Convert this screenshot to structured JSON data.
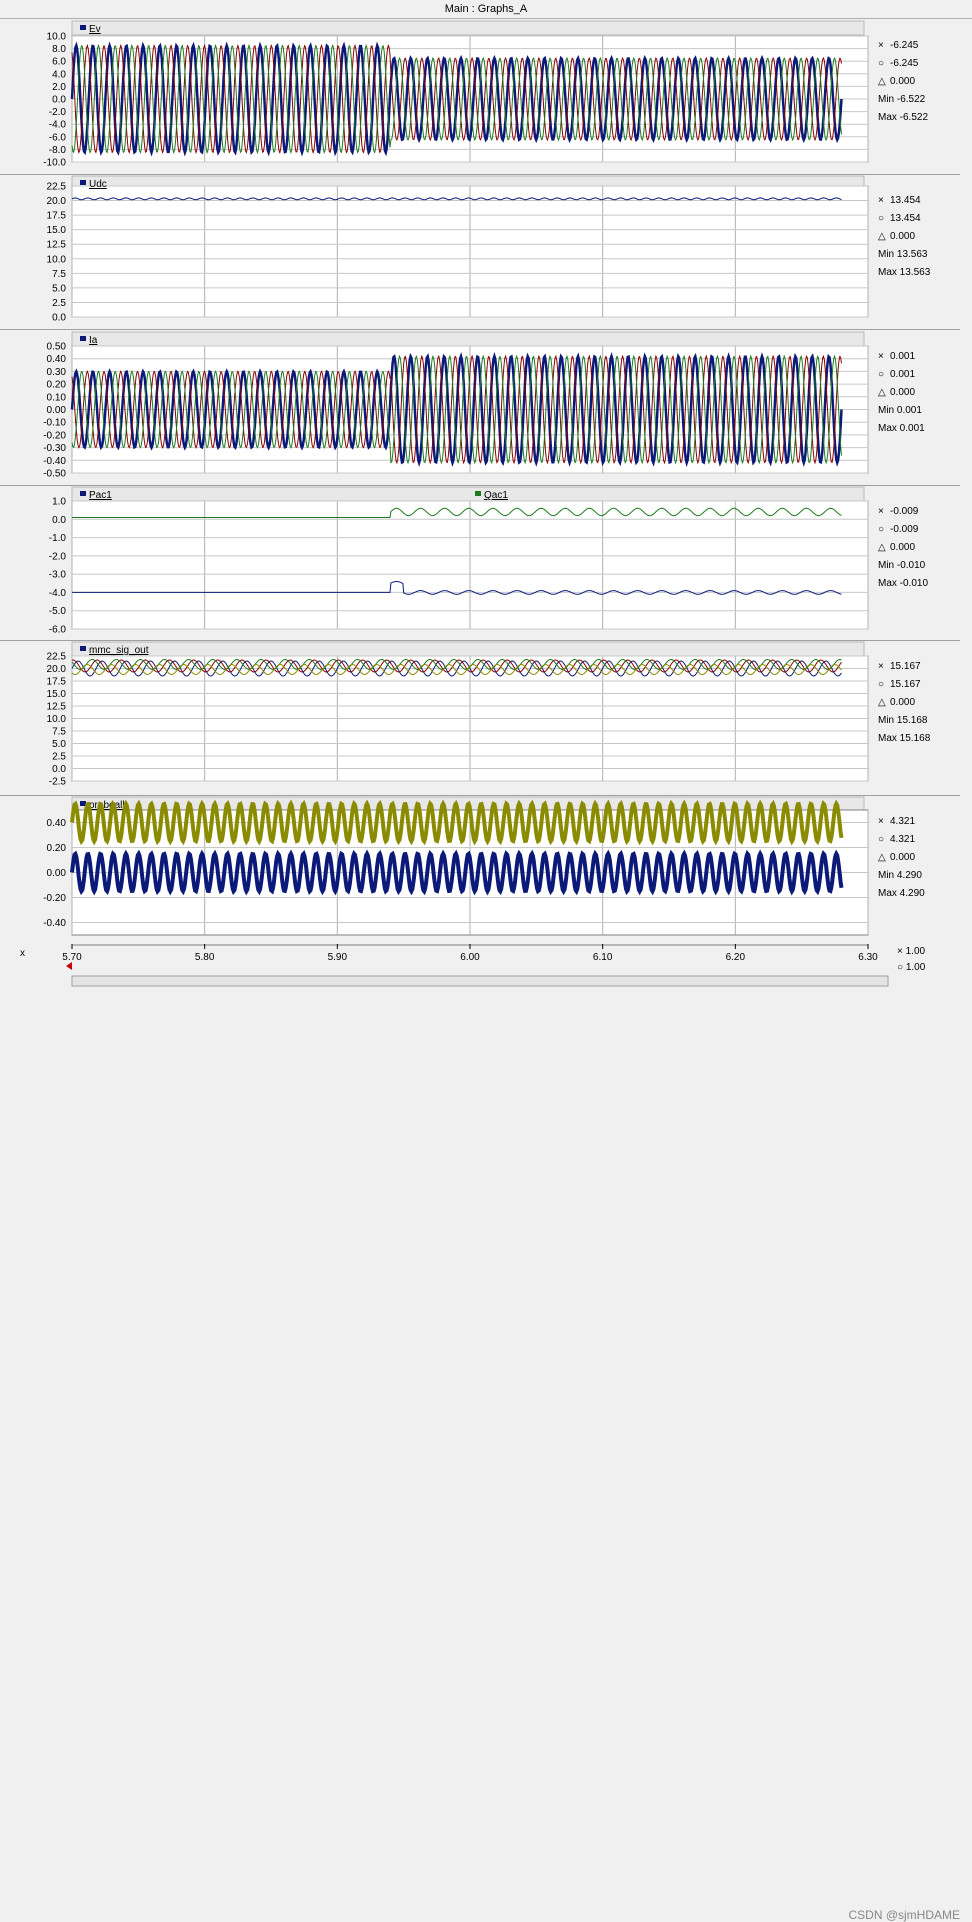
{
  "window": {
    "title": "Main : Graphs_A"
  },
  "x_axis": {
    "label": "x",
    "ticks": [
      "5.70",
      "5.80",
      "5.90",
      "6.00",
      "6.10",
      "6.20",
      "6.30"
    ],
    "readout_x": "1.00",
    "readout_o": "1.00"
  },
  "watermark": "CSDN @sjmHDAME",
  "colors": {
    "blue": "#0b1a78",
    "red": "#8b0000",
    "green": "#1e7a1e",
    "olive": "#8b8b00",
    "grid": "#c0c0c0"
  },
  "panels": [
    {
      "key": "ev",
      "labels": [
        "Ev"
      ],
      "x": "-6.245",
      "o": "-6.245",
      "d": "0.000",
      "min": "Min -6.522",
      "max": "Max -6.522",
      "ticks": [
        "10.0",
        "8.0",
        "6.0",
        "4.0",
        "2.0",
        "0.0",
        "-2.0",
        "-4.0",
        "-6.0",
        "-8.0",
        "-10.0"
      ]
    },
    {
      "key": "udc",
      "labels": [
        "Udc"
      ],
      "x": "13.454",
      "o": "13.454",
      "d": "0.000",
      "min": "Min 13.563",
      "max": "Max 13.563",
      "ticks": [
        "22.5",
        "20.0",
        "17.5",
        "15.0",
        "12.5",
        "10.0",
        "7.5",
        "5.0",
        "2.5",
        "0.0"
      ]
    },
    {
      "key": "ia",
      "labels": [
        "Ia"
      ],
      "x": "0.001",
      "o": "0.001",
      "d": "0.000",
      "min": "Min 0.001",
      "max": "Max 0.001",
      "ticks": [
        "0.50",
        "0.40",
        "0.30",
        "0.20",
        "0.10",
        "0.00",
        "-0.10",
        "-0.20",
        "-0.30",
        "-0.40",
        "-0.50"
      ]
    },
    {
      "key": "pq",
      "labels": [
        "Pac1",
        "Qac1"
      ],
      "x": "-0.009",
      "o": "-0.009",
      "d": "0.000",
      "min": "Min -0.010",
      "max": "Max -0.010",
      "ticks": [
        "1.0",
        "0.0",
        "-1.0",
        "-2.0",
        "-3.0",
        "-4.0",
        "-5.0",
        "-6.0"
      ]
    },
    {
      "key": "mmc",
      "labels": [
        "mmc_sig_out"
      ],
      "x": "15.167",
      "o": "15.167",
      "d": "0.000",
      "min": "Min 15.168",
      "max": "Max 15.168",
      "ticks": [
        "22.5",
        "20.0",
        "17.5",
        "15.0",
        "12.5",
        "10.0",
        "7.5",
        "5.0",
        "2.5",
        "0.0",
        "-2.5"
      ]
    },
    {
      "key": "probe",
      "labels": [
        "probeall"
      ],
      "x": "4.321",
      "o": "4.321",
      "d": "0.000",
      "min": "Min 4.290",
      "max": "Max 4.290",
      "ticks": [
        "0.40",
        "0.20",
        "0.00",
        "-0.20",
        "-0.40"
      ]
    }
  ],
  "chart_data": [
    {
      "type": "line",
      "labels": [
        "Ev"
      ],
      "xlim": [
        5.7,
        6.3
      ],
      "ylim": [
        -10,
        10
      ],
      "grid": true,
      "series": [
        {
          "color": "#0b1a78",
          "amp_before": 8.5,
          "amp_after": 6.5
        },
        {
          "color": "#8b0000",
          "amp_before": 8.5,
          "amp_after": 6.5
        },
        {
          "color": "#1e7a1e",
          "amp_before": 8.5,
          "amp_after": 6.5
        }
      ],
      "step_time": 5.94,
      "end_time": 6.28,
      "cycles": 46
    },
    {
      "type": "line",
      "labels": [
        "Udc"
      ],
      "xlim": [
        5.7,
        6.3
      ],
      "ylim": [
        0,
        22.5
      ],
      "grid": true,
      "series": [
        {
          "color": "#0b1a78",
          "level": 20.3
        }
      ],
      "end_time": 6.28
    },
    {
      "type": "line",
      "labels": [
        "Ia"
      ],
      "xlim": [
        5.7,
        6.3
      ],
      "ylim": [
        -0.5,
        0.5
      ],
      "grid": true,
      "series": [
        {
          "color": "#0b1a78",
          "amp_before": 0.3,
          "amp_after": 0.42
        },
        {
          "color": "#8b0000",
          "amp_before": 0.3,
          "amp_after": 0.42
        },
        {
          "color": "#1e7a1e",
          "amp_before": 0.3,
          "amp_after": 0.42
        }
      ],
      "step_time": 5.94,
      "end_time": 6.28,
      "cycles": 46
    },
    {
      "type": "line",
      "labels": [
        "Pac1",
        "Qac1"
      ],
      "xlim": [
        5.7,
        6.3
      ],
      "ylim": [
        -6,
        1
      ],
      "grid": true,
      "series": [
        {
          "color": "#0b1a78",
          "level": -4.0,
          "ripple_after": 0.1
        },
        {
          "color": "#1e7a1e",
          "level_before": 0.1,
          "level_after": 0.4,
          "ripple_after": 0.2
        }
      ],
      "step_time": 5.94,
      "end_time": 6.28
    },
    {
      "type": "line",
      "labels": [
        "mmc_sig_out"
      ],
      "xlim": [
        5.7,
        6.3
      ],
      "ylim": [
        -2.5,
        22.5
      ],
      "grid": true,
      "series": [
        {
          "color": "#0b1a78",
          "level": 20.0,
          "ripple": 1.5
        },
        {
          "color": "#8b0000",
          "level": 20.5,
          "ripple": 1.2
        },
        {
          "color": "#1e7a1e",
          "level": 20.8,
          "ripple": 1.0
        },
        {
          "color": "#8b8b00",
          "level": 19.8,
          "ripple": 1.0
        }
      ],
      "end_time": 6.28
    },
    {
      "type": "line",
      "labels": [
        "probeall"
      ],
      "xlim": [
        5.7,
        6.3
      ],
      "ylim": [
        -0.5,
        0.5
      ],
      "grid": true,
      "series": [
        {
          "color": "#8b8b00",
          "level": 0.4
        },
        {
          "color": "#0b1a78",
          "level": 0.0
        }
      ],
      "end_time": 6.28
    }
  ]
}
